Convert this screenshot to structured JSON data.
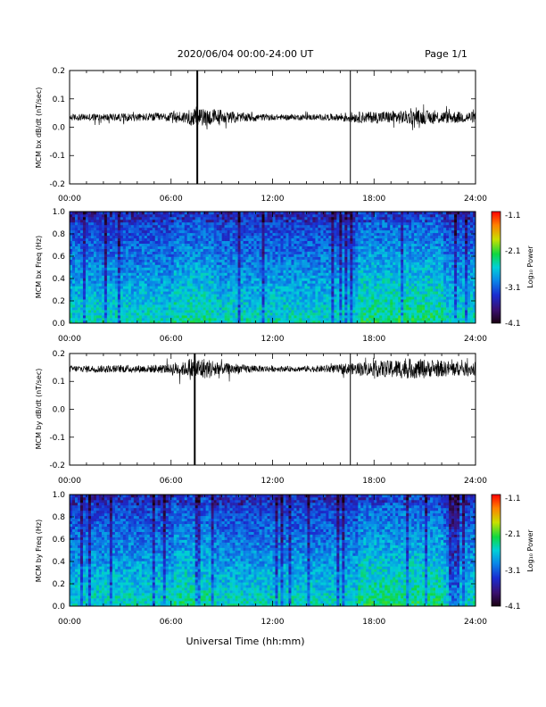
{
  "header": {
    "title": "2020/06/04  00:00-24:00 UT",
    "page": "Page 1/1"
  },
  "footer": {
    "xlabel": "Universal Time (hh:mm)"
  },
  "chart_data": [
    {
      "type": "line",
      "ylabel": "MCM bx dB/dt (nT/sec)",
      "xlim": [
        0,
        24
      ],
      "ylim": [
        -0.2,
        0.2
      ],
      "x_tick_labels": [
        "00:00",
        "06:00",
        "12:00",
        "18:00",
        "24:00"
      ],
      "y_tick_labels": [
        "-0.2",
        "-0.1",
        "0.0",
        "0.1",
        "0.2"
      ],
      "series": [
        {
          "baseline": 0.035,
          "noise_amplitude_by_hour": [
            0.012,
            0.013,
            0.013,
            0.014,
            0.014,
            0.016,
            0.022,
            0.03,
            0.03,
            0.02,
            0.016,
            0.012,
            0.01,
            0.01,
            0.01,
            0.012,
            0.018,
            0.02,
            0.022,
            0.024,
            0.025,
            0.024,
            0.022,
            0.02
          ],
          "spikes": [
            {
              "x": 7.55,
              "y_min": -0.2,
              "y_max": 0.2
            },
            {
              "x": 16.6,
              "y_min": -0.2,
              "y_max": 0.2
            }
          ]
        }
      ]
    },
    {
      "type": "heatmap",
      "ylabel": "MCM bx Freq (Hz)",
      "xlim": [
        0,
        24
      ],
      "ylim": [
        0,
        1.0
      ],
      "x_tick_labels": [
        "00:00",
        "06:00",
        "12:00",
        "18:00",
        "24:00"
      ],
      "y_tick_labels": [
        "0.0",
        "0.2",
        "0.4",
        "0.6",
        "0.8",
        "1.0"
      ],
      "colorbar": {
        "label": "Log₁₀ Power",
        "range": [
          -4.1,
          -1.1
        ],
        "tick_labels": [
          "-1.1",
          "-2.1",
          "-3.1",
          "-4.1"
        ]
      }
    },
    {
      "type": "line",
      "ylabel": "MCM by dB/dt (nT/sec)",
      "xlim": [
        0,
        24
      ],
      "ylim": [
        -0.2,
        0.2
      ],
      "x_tick_labels": [
        "00:00",
        "06:00",
        "12:00",
        "18:00",
        "24:00"
      ],
      "y_tick_labels": [
        "-0.2",
        "-0.1",
        "0.0",
        "0.1",
        "0.2"
      ],
      "series": [
        {
          "baseline": 0.145,
          "noise_amplitude_by_hour": [
            0.012,
            0.013,
            0.013,
            0.014,
            0.014,
            0.016,
            0.025,
            0.04,
            0.035,
            0.02,
            0.015,
            0.012,
            0.01,
            0.01,
            0.012,
            0.015,
            0.02,
            0.025,
            0.03,
            0.035,
            0.035,
            0.03,
            0.028,
            0.025
          ],
          "spikes": [
            {
              "x": 7.4,
              "y_min": -0.2,
              "y_max": 0.2
            },
            {
              "x": 16.6,
              "y_min": -0.2,
              "y_max": 0.2
            }
          ]
        }
      ]
    },
    {
      "type": "heatmap",
      "ylabel": "MCM by Freq (Hz)",
      "xlim": [
        0,
        24
      ],
      "ylim": [
        0,
        1.0
      ],
      "x_tick_labels": [
        "00:00",
        "06:00",
        "12:00",
        "18:00",
        "24:00"
      ],
      "y_tick_labels": [
        "0.0",
        "0.2",
        "0.4",
        "0.6",
        "0.8",
        "1.0"
      ],
      "colorbar": {
        "label": "Log₁₀ Power",
        "range": [
          -4.1,
          -1.1
        ],
        "tick_labels": [
          "-1.1",
          "-2.1",
          "-3.1",
          "-4.1"
        ]
      }
    }
  ]
}
